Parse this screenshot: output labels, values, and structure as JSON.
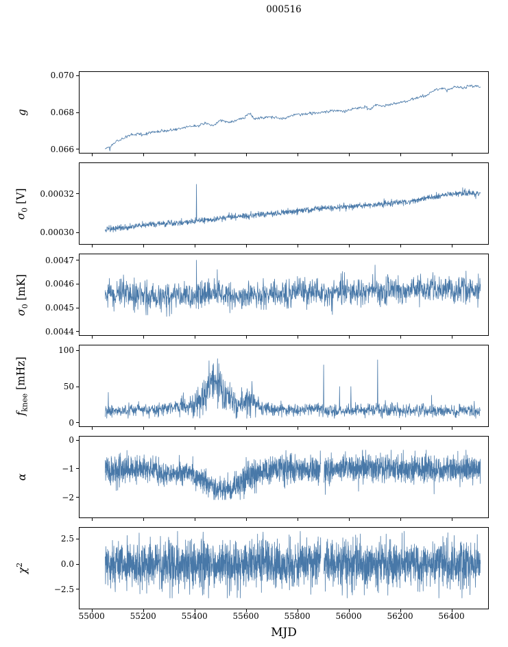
{
  "chart_data": {
    "type": "line",
    "title": "000516",
    "xlabel": "MJD",
    "line_color": "#4878a8",
    "x_range": [
      54950,
      56540
    ],
    "data_x_range": [
      55050,
      56510
    ],
    "x_ticks": {
      "values": [
        55000,
        55200,
        55400,
        55600,
        55800,
        56000,
        56200,
        56400
      ],
      "labels": [
        "55000",
        "55200",
        "55400",
        "55600",
        "55800",
        "56000",
        "56200",
        "56400"
      ]
    },
    "panels": [
      {
        "id": "g",
        "ylabel": {
          "main": "g",
          "sub": "",
          "sup": "",
          "unit": ""
        },
        "ylim": [
          0.0658,
          0.0702
        ],
        "yticks": {
          "values": [
            0.066,
            0.068,
            0.07
          ],
          "labels": [
            "0.066",
            "0.068",
            "0.070"
          ]
        },
        "trend": [
          [
            55050,
            0.066
          ],
          [
            55070,
            0.06615
          ],
          [
            55090,
            0.0664
          ],
          [
            55110,
            0.06655
          ],
          [
            55130,
            0.06665
          ],
          [
            55160,
            0.06683
          ],
          [
            55200,
            0.0668
          ],
          [
            55240,
            0.06695
          ],
          [
            55280,
            0.067
          ],
          [
            55320,
            0.06705
          ],
          [
            55360,
            0.06722
          ],
          [
            55400,
            0.06725
          ],
          [
            55440,
            0.0674
          ],
          [
            55470,
            0.0673
          ],
          [
            55500,
            0.06756
          ],
          [
            55530,
            0.06745
          ],
          [
            55560,
            0.06758
          ],
          [
            55590,
            0.0677
          ],
          [
            55610,
            0.068
          ],
          [
            55630,
            0.06765
          ],
          [
            55660,
            0.0677
          ],
          [
            55700,
            0.06775
          ],
          [
            55740,
            0.06765
          ],
          [
            55780,
            0.06785
          ],
          [
            55820,
            0.0679
          ],
          [
            55860,
            0.06795
          ],
          [
            55900,
            0.068
          ],
          [
            55940,
            0.0681
          ],
          [
            55980,
            0.06805
          ],
          [
            56020,
            0.0682
          ],
          [
            56060,
            0.0683
          ],
          [
            56080,
            0.06815
          ],
          [
            56100,
            0.0684
          ],
          [
            56140,
            0.06835
          ],
          [
            56180,
            0.0685
          ],
          [
            56220,
            0.0686
          ],
          [
            56260,
            0.0688
          ],
          [
            56300,
            0.0689
          ],
          [
            56330,
            0.0692
          ],
          [
            56360,
            0.06935
          ],
          [
            56380,
            0.0692
          ],
          [
            56410,
            0.0694
          ],
          [
            56440,
            0.0693
          ],
          [
            56470,
            0.06945
          ],
          [
            56510,
            0.0694
          ]
        ],
        "noise": 4e-05,
        "spikes": [
          [
            55068,
            0.0659
          ]
        ],
        "step": 2,
        "seed": 11
      },
      {
        "id": "sigma0-v",
        "ylabel": {
          "main": "σ",
          "sub": "0",
          "sup": "",
          "unit": "[V]"
        },
        "ylim": [
          0.000294,
          0.000336
        ],
        "yticks": {
          "values": [
            0.0003,
            0.00032
          ],
          "labels": [
            "0.00030",
            "0.00032"
          ]
        },
        "trend": [
          [
            55050,
            0.0003015
          ],
          [
            55150,
            0.000303
          ],
          [
            55250,
            0.0003045
          ],
          [
            55350,
            0.000305
          ],
          [
            55450,
            0.0003065
          ],
          [
            55550,
            0.000308
          ],
          [
            55650,
            0.000309
          ],
          [
            55750,
            0.0003105
          ],
          [
            55850,
            0.000312
          ],
          [
            55950,
            0.000313
          ],
          [
            56050,
            0.000314
          ],
          [
            56150,
            0.000315
          ],
          [
            56250,
            0.0003165
          ],
          [
            56350,
            0.000319
          ],
          [
            56420,
            0.0003205
          ],
          [
            56510,
            0.00032
          ]
        ],
        "noise": 8e-07,
        "spikes": [
          [
            55405,
            0.000325
          ]
        ],
        "step": 1,
        "seed": 22
      },
      {
        "id": "sigma0-mk",
        "ylabel": {
          "main": "σ",
          "sub": "0",
          "sup": "",
          "unit": "[mK]"
        },
        "ylim": [
          0.004385,
          0.004725
        ],
        "yticks": {
          "values": [
            0.0044,
            0.0045,
            0.0046,
            0.0047
          ],
          "labels": [
            "0.0044",
            "0.0045",
            "0.0046",
            "0.0047"
          ]
        },
        "trend": [
          [
            55050,
            0.00456
          ],
          [
            55120,
            0.004565
          ],
          [
            55200,
            0.004545
          ],
          [
            55260,
            0.00454
          ],
          [
            55320,
            0.00455
          ],
          [
            55400,
            0.00455
          ],
          [
            55480,
            0.00456
          ],
          [
            55560,
            0.00455
          ],
          [
            55640,
            0.004555
          ],
          [
            55720,
            0.00456
          ],
          [
            55800,
            0.004565
          ],
          [
            55880,
            0.00456
          ],
          [
            55960,
            0.00457
          ],
          [
            56040,
            0.00457
          ],
          [
            56120,
            0.00457
          ],
          [
            56200,
            0.004575
          ],
          [
            56280,
            0.00458
          ],
          [
            56360,
            0.00458
          ],
          [
            56440,
            0.00458
          ],
          [
            56510,
            0.00458
          ]
        ],
        "noise": 2.8e-05,
        "clip": [
          0.00444,
          0.004712
        ],
        "spikes": [
          [
            55405,
            0.0047
          ],
          [
            55215,
            0.00447
          ],
          [
            55300,
            0.004465
          ],
          [
            56100,
            0.00468
          ]
        ],
        "step": 1,
        "seed": 33
      },
      {
        "id": "fknee",
        "ylabel": {
          "main": "f",
          "sub": "knee",
          "sup": "",
          "unit": "[mHz]"
        },
        "ylim": [
          -5,
          107
        ],
        "yticks": {
          "values": [
            0,
            50,
            100
          ],
          "labels": [
            "0",
            "50",
            "100"
          ]
        },
        "trend": [
          [
            55050,
            16
          ],
          [
            55150,
            17
          ],
          [
            55250,
            18
          ],
          [
            55310,
            21
          ],
          [
            55360,
            22
          ],
          [
            55400,
            24
          ],
          [
            55430,
            38
          ],
          [
            55455,
            52
          ],
          [
            55475,
            58
          ],
          [
            55495,
            55
          ],
          [
            55515,
            42
          ],
          [
            55540,
            32
          ],
          [
            55565,
            24
          ],
          [
            55585,
            28
          ],
          [
            55605,
            34
          ],
          [
            55625,
            30
          ],
          [
            55645,
            22
          ],
          [
            55680,
            19
          ],
          [
            55750,
            18
          ],
          [
            55850,
            19
          ],
          [
            55950,
            17
          ],
          [
            56050,
            18
          ],
          [
            56150,
            17
          ],
          [
            56250,
            17
          ],
          [
            56350,
            16
          ],
          [
            56450,
            17
          ],
          [
            56510,
            16
          ]
        ],
        "noise": [
          [
            55050,
            4
          ],
          [
            55330,
            5
          ],
          [
            55400,
            8
          ],
          [
            55440,
            13
          ],
          [
            55480,
            15
          ],
          [
            55520,
            12
          ],
          [
            55560,
            9
          ],
          [
            55600,
            9
          ],
          [
            55650,
            6
          ],
          [
            55700,
            4.5
          ],
          [
            56510,
            4.5
          ]
        ],
        "clip": [
          6,
          102
        ],
        "spikes": [
          [
            55062,
            42
          ],
          [
            55900,
            80
          ],
          [
            55962,
            50
          ],
          [
            56006,
            50
          ],
          [
            56110,
            87
          ],
          [
            56320,
            38
          ]
        ],
        "step": 1,
        "seed": 44
      },
      {
        "id": "alpha",
        "ylabel": {
          "main": "α",
          "sub": "",
          "sup": "",
          "unit": ""
        },
        "ylim": [
          -2.7,
          0.12
        ],
        "yticks": {
          "values": [
            -2,
            -1,
            0
          ],
          "labels": [
            "−2",
            "−1",
            "0"
          ]
        },
        "trend": [
          [
            55050,
            -1.0
          ],
          [
            55200,
            -1.0
          ],
          [
            55260,
            -1.1
          ],
          [
            55300,
            -1.25
          ],
          [
            55340,
            -1.2
          ],
          [
            55380,
            -1.1
          ],
          [
            55420,
            -1.35
          ],
          [
            55450,
            -1.55
          ],
          [
            55480,
            -1.7
          ],
          [
            55510,
            -1.75
          ],
          [
            55540,
            -1.7
          ],
          [
            55570,
            -1.55
          ],
          [
            55590,
            -1.35
          ],
          [
            55610,
            -1.2
          ],
          [
            55630,
            -1.35
          ],
          [
            55650,
            -1.15
          ],
          [
            55680,
            -1.05
          ],
          [
            55750,
            -1.0
          ],
          [
            56510,
            -1.0
          ]
        ],
        "noise": [
          [
            55050,
            0.24
          ],
          [
            55420,
            0.2
          ],
          [
            55560,
            0.2
          ],
          [
            55620,
            0.26
          ],
          [
            55660,
            0.24
          ],
          [
            56510,
            0.24
          ]
        ],
        "clip": [
          -2.08,
          -0.35
        ],
        "gaps": [
          [
            55889,
            55901
          ]
        ],
        "spikes": [
          [
            55906,
            -1.9
          ],
          [
            56330,
            -1.88
          ]
        ],
        "step": 0.6,
        "seed": 55
      },
      {
        "id": "chi2",
        "ylabel": {
          "main": "χ",
          "sub": "",
          "sup": "2",
          "unit": ""
        },
        "ylim": [
          -4.4,
          3.6
        ],
        "yticks": {
          "values": [
            -2.5,
            0.0,
            2.5
          ],
          "labels": [
            "−2.5",
            "0.0",
            "2.5"
          ]
        },
        "trend": [
          [
            55050,
            0
          ],
          [
            56510,
            0
          ]
        ],
        "noise": 1.15,
        "clip": [
          -3.35,
          3.25
        ],
        "gaps": [
          [
            55889,
            55901
          ]
        ],
        "spikes": [],
        "step": 0.6,
        "seed": 66
      }
    ]
  }
}
